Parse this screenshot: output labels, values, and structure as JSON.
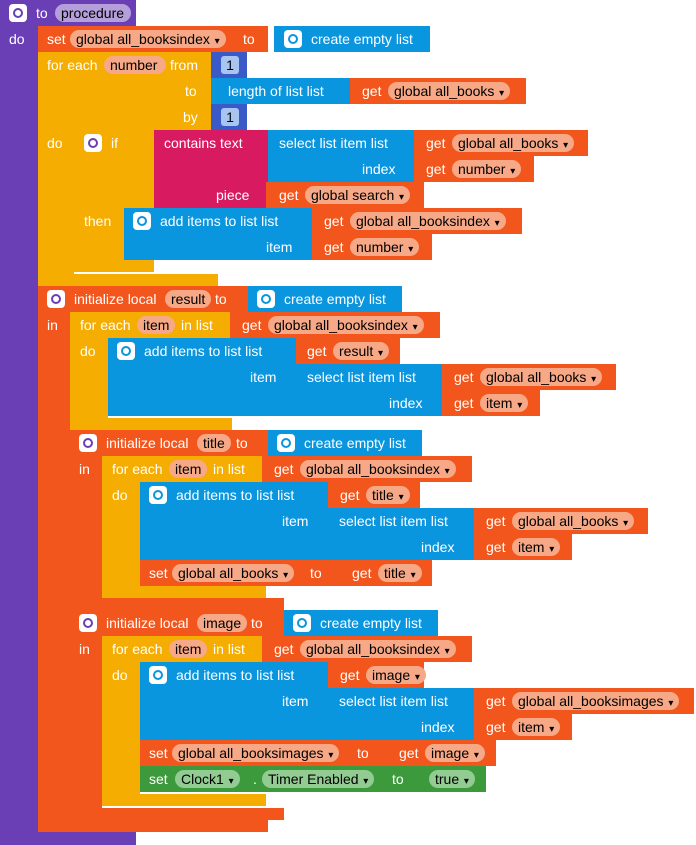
{
  "procedure": {
    "kw_to": "to",
    "name": "procedure",
    "kw_do": "do"
  },
  "set_index": {
    "kw_set": "set",
    "var": "global all_booksindex",
    "kw_to": "to",
    "create_label": "create empty list"
  },
  "for_num": {
    "kw_for_each": "for each",
    "var": "number",
    "kw_from": "from",
    "from_val": "1",
    "kw_to": "to",
    "length_label": "length of list  list",
    "kw_get": "get",
    "length_var": "global all_books",
    "kw_by": "by",
    "by_val": "1",
    "kw_do": "do"
  },
  "if_block": {
    "kw_if": "if",
    "contains_label": "contains  text",
    "select_label": "select list item  list",
    "select_var": "global all_books",
    "kw_index": "index",
    "index_var": "number",
    "kw_piece": "piece",
    "piece_var": "global search",
    "kw_then": "then",
    "add_label": "add items to list   list",
    "add_var": "global all_booksindex",
    "kw_item": "item",
    "item_var": "number"
  },
  "local_result": {
    "kw_init": "initialize local",
    "name": "result",
    "kw_to": "to",
    "create_label": "create empty list",
    "kw_in": "in",
    "for_kw": "for each",
    "for_var": "item",
    "in_list_kw": "in list",
    "for_list_var": "global all_booksindex",
    "kw_do": "do",
    "add_label": "add items to list   list",
    "add_var": "result",
    "kw_item": "item",
    "select_label": "select list item  list",
    "select_var": "global all_books",
    "kw_index": "index",
    "index_var": "item"
  },
  "local_title": {
    "kw_init": "initialize local",
    "name": "title",
    "kw_to": "to",
    "create_label": "create empty list",
    "kw_in": "in",
    "for_kw": "for each",
    "for_var": "item",
    "in_list_kw": "in list",
    "for_list_var": "global all_booksindex",
    "kw_do": "do",
    "add_label": "add items to list   list",
    "add_var": "title",
    "kw_item": "item",
    "select_label": "select list item  list",
    "select_var": "global all_books",
    "kw_index": "index",
    "index_var": "item",
    "set_kw": "set",
    "set_var": "global all_books",
    "set_to_kw": "to",
    "set_get": "title"
  },
  "local_image": {
    "kw_init": "initialize local",
    "name": "image",
    "kw_to": "to",
    "create_label": "create empty list",
    "kw_in": "in",
    "for_kw": "for each",
    "for_var": "item",
    "in_list_kw": "in list",
    "for_list_var": "global all_booksindex",
    "kw_do": "do",
    "add_label": "add items to list   list",
    "add_var": "image",
    "kw_item": "item",
    "select_label": "select list item  list",
    "select_var": "global all_booksimages",
    "kw_index": "index",
    "index_var": "item",
    "set_kw": "set",
    "set_var": "global all_booksimages",
    "set_to_kw": "to",
    "set_get": "image",
    "clock_set_kw": "set",
    "clock_comp": "Clock1",
    "clock_dot": ".",
    "clock_prop": "Timer Enabled",
    "clock_to_kw": "to",
    "clock_val": "true"
  },
  "kw_get": "get"
}
